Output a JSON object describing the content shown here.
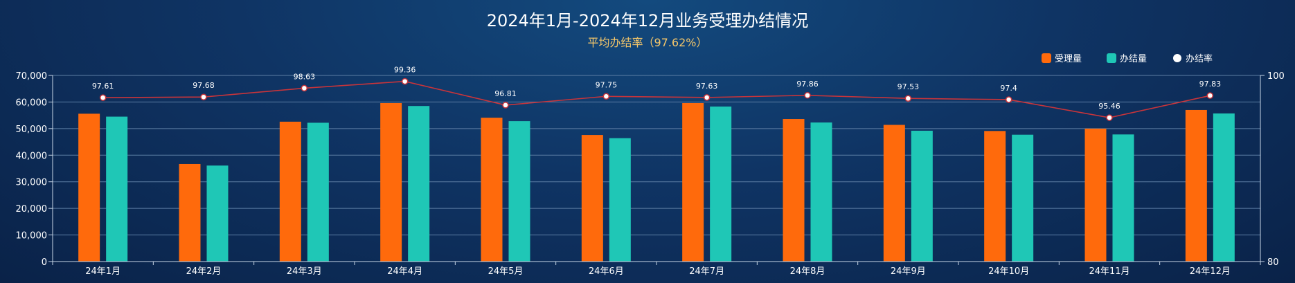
{
  "chart_data": {
    "type": "bar",
    "title": "2024年1月-2024年12月业务受理办结情况",
    "subtitle": "平均办结率（97.62%）",
    "categories": [
      "24年1月",
      "24年2月",
      "24年3月",
      "24年4月",
      "24年5月",
      "24年6月",
      "24年7月",
      "24年8月",
      "24年9月",
      "24年10月",
      "24年11月",
      "24年12月"
    ],
    "series": [
      {
        "name": "受理量",
        "type": "bar",
        "axis": "left",
        "color": "#ff6a0c",
        "values": [
          55600,
          36700,
          52600,
          59600,
          54100,
          47600,
          59600,
          53600,
          51400,
          49100,
          50000,
          57000
        ]
      },
      {
        "name": "办结量",
        "type": "bar",
        "axis": "left",
        "color": "#1fc7b6",
        "values": [
          54500,
          36100,
          52200,
          58500,
          52800,
          46400,
          58300,
          52300,
          49200,
          47700,
          47800,
          55700
        ]
      },
      {
        "name": "办结率",
        "type": "line",
        "axis": "right",
        "color": "#c9343a",
        "values": [
          97.61,
          97.68,
          98.63,
          99.36,
          96.81,
          97.75,
          97.63,
          97.86,
          97.53,
          97.4,
          95.46,
          97.83
        ]
      }
    ],
    "y_left": {
      "min": 0,
      "max": 70000,
      "ticks": [
        "0",
        "10,000",
        "20,000",
        "30,000",
        "40,000",
        "50,000",
        "60,000",
        "70,000"
      ]
    },
    "y_right": {
      "min": 80,
      "max": 100,
      "ticks": [
        "80",
        "100"
      ]
    },
    "grid": true,
    "legend_position": "top-right"
  }
}
